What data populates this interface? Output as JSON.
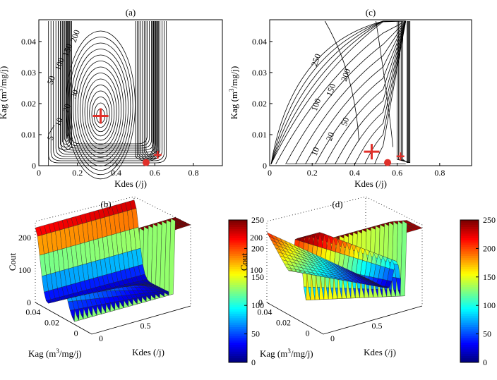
{
  "figure": {
    "panels": [
      {
        "id": "a",
        "title": "(a)",
        "type": "contour",
        "xlabel": "Kdes (/j)",
        "ylabel": "Kag (m3/mg/j)",
        "xlim": [
          0,
          0.95
        ],
        "ylim": [
          0,
          0.047
        ],
        "xticks": [
          "0",
          "0.2",
          "0.4",
          "0.6",
          "0.8"
        ],
        "yticks": [
          "0",
          "0.01",
          "0.02",
          "0.03",
          "0.04"
        ],
        "contour_labels": [
          "5",
          "10",
          "20",
          "30",
          "50",
          "100",
          "150",
          "200"
        ],
        "markers": [
          {
            "kind": "plus-large",
            "x": 0.32,
            "y": 0.016
          },
          {
            "kind": "dot",
            "x": 0.555,
            "y": 0.001
          },
          {
            "kind": "plus-small",
            "x": 0.615,
            "y": 0.0035
          }
        ]
      },
      {
        "id": "c",
        "title": "(c)",
        "type": "contour",
        "xlabel": "Kdes (/j)",
        "ylabel": "Kag (m3/mg/j)",
        "xlim": [
          0,
          0.95
        ],
        "ylim": [
          0,
          0.047
        ],
        "xticks": [
          "0",
          "0.2",
          "0.4",
          "0.6",
          "0.8"
        ],
        "yticks": [
          "0",
          "0.01",
          "0.02",
          "0.03",
          "0.04"
        ],
        "contour_labels": [
          "10",
          "20",
          "50",
          "100",
          "150",
          "200",
          "250"
        ],
        "markers": [
          {
            "kind": "plus-large",
            "x": 0.48,
            "y": 0.0045
          },
          {
            "kind": "dot",
            "x": 0.555,
            "y": 0.001
          },
          {
            "kind": "plus-small",
            "x": 0.615,
            "y": 0.003
          }
        ]
      },
      {
        "id": "b",
        "title": "(b)",
        "type": "surface3d",
        "xlabel": "Kdes (/j)",
        "ylabel": "Kag (m3/mg/j)",
        "zlabel": "Cout",
        "zticks": [
          "0",
          "100",
          "200"
        ],
        "yticks": [
          "0.04",
          "0.02",
          "0"
        ],
        "xticks": [
          "0",
          "0.5"
        ],
        "colorbar": {
          "min": 0,
          "max": 250,
          "ticks": [
            "0",
            "50",
            "100",
            "150",
            "200",
            "250"
          ],
          "colormap": "jet"
        }
      },
      {
        "id": "d",
        "title": "(d)",
        "type": "surface3d",
        "xlabel": "Kdes (/j)",
        "ylabel": "Kag (m3/mg/j)",
        "zlabel": "Cout",
        "zticks": [
          "0",
          "100",
          "200"
        ],
        "yticks": [
          "0.04",
          "0.02",
          "0"
        ],
        "xticks": [
          "0",
          "0.5"
        ],
        "colorbar": {
          "min": 0,
          "max": 250,
          "ticks": [
            "0",
            "50",
            "100",
            "150",
            "200",
            "250"
          ],
          "colormap": "jet"
        }
      }
    ]
  },
  "chart_data": [
    {
      "type": "heatmap",
      "title": "(a)",
      "xlabel": "Kdes (/j)",
      "ylabel": "Kag (m3/mg/j)",
      "xlim": [
        0,
        0.95
      ],
      "ylim": [
        0,
        0.047
      ],
      "levels": [
        5,
        10,
        20,
        30,
        50,
        100,
        150,
        200
      ],
      "minima": [
        {
          "x": 0.32,
          "y": 0.016
        },
        {
          "x": 0.555,
          "y": 0.001
        },
        {
          "x": 0.615,
          "y": 0.0035
        }
      ]
    },
    {
      "type": "heatmap",
      "title": "(c)",
      "xlabel": "Kdes (/j)",
      "ylabel": "Kag (m3/mg/j)",
      "xlim": [
        0,
        0.95
      ],
      "ylim": [
        0,
        0.047
      ],
      "levels": [
        10,
        20,
        50,
        100,
        150,
        200,
        250
      ],
      "minima": [
        {
          "x": 0.48,
          "y": 0.0045
        },
        {
          "x": 0.555,
          "y": 0.001
        },
        {
          "x": 0.615,
          "y": 0.003
        }
      ]
    },
    {
      "type": "heatmap",
      "title": "(b)",
      "zlabel": "Cout",
      "zlim": [
        0,
        250
      ],
      "colorbar": [
        0,
        250
      ]
    },
    {
      "type": "heatmap",
      "title": "(d)",
      "zlabel": "Cout",
      "zlim": [
        0,
        250
      ],
      "colorbar": [
        0,
        250
      ]
    }
  ]
}
